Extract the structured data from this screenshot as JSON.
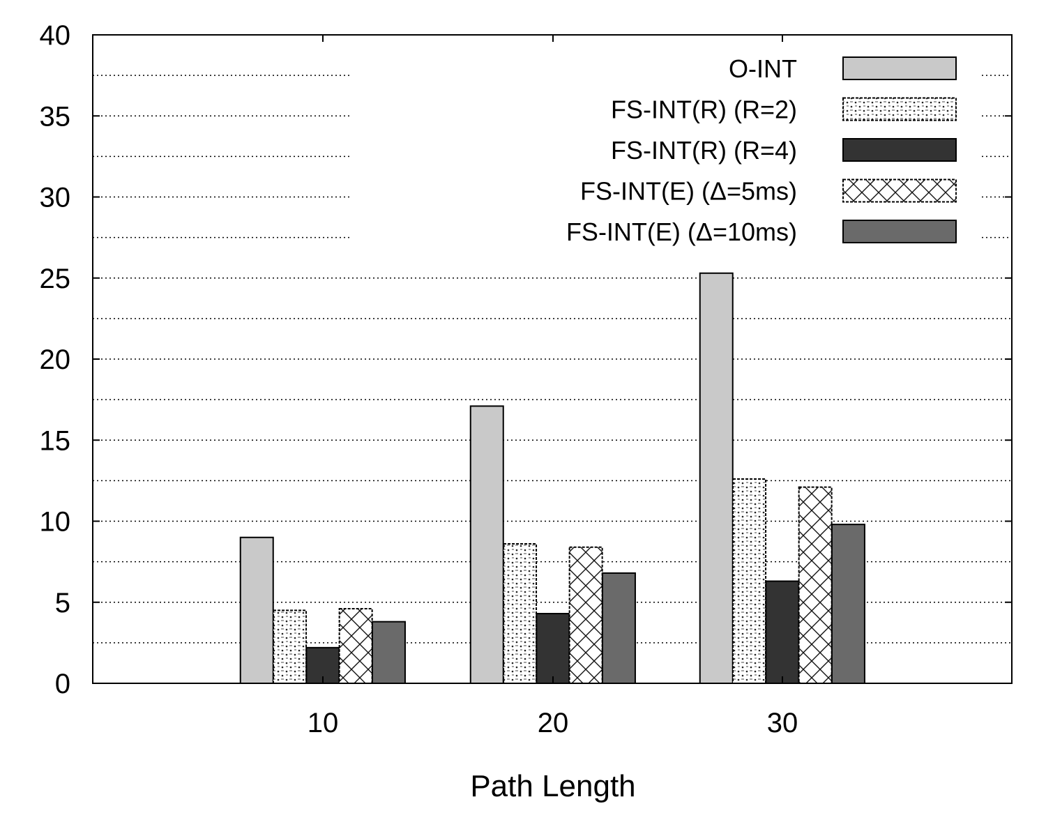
{
  "chart_data": {
    "type": "bar",
    "title": "",
    "xlabel": "Path Length",
    "ylabel": "",
    "ylim": [
      0,
      40
    ],
    "yticks": [
      0,
      5,
      10,
      15,
      20,
      25,
      30,
      35,
      40
    ],
    "categories": [
      "10",
      "20",
      "30"
    ],
    "grid": "horizontal dotted",
    "legend_position": "top-right",
    "series": [
      {
        "name": "O-INT",
        "values": [
          9.0,
          17.1,
          25.3
        ],
        "fill": "#c9c9c9",
        "pattern": "solid"
      },
      {
        "name": "FS-INT(R) (R=2)",
        "values": [
          4.5,
          8.6,
          12.6
        ],
        "fill": "#ffffff",
        "pattern": "dots"
      },
      {
        "name": "FS-INT(R) (R=4)",
        "values": [
          2.2,
          4.3,
          6.3
        ],
        "fill": "#333333",
        "pattern": "solid"
      },
      {
        "name": "FS-INT(E) (Δ=5ms)",
        "values": [
          4.6,
          8.4,
          12.1
        ],
        "fill": "#ffffff",
        "pattern": "crosshatch"
      },
      {
        "name": "FS-INT(E) (Δ=10ms)",
        "values": [
          3.8,
          6.8,
          9.8
        ],
        "fill": "#6a6a6a",
        "pattern": "solid"
      }
    ]
  }
}
